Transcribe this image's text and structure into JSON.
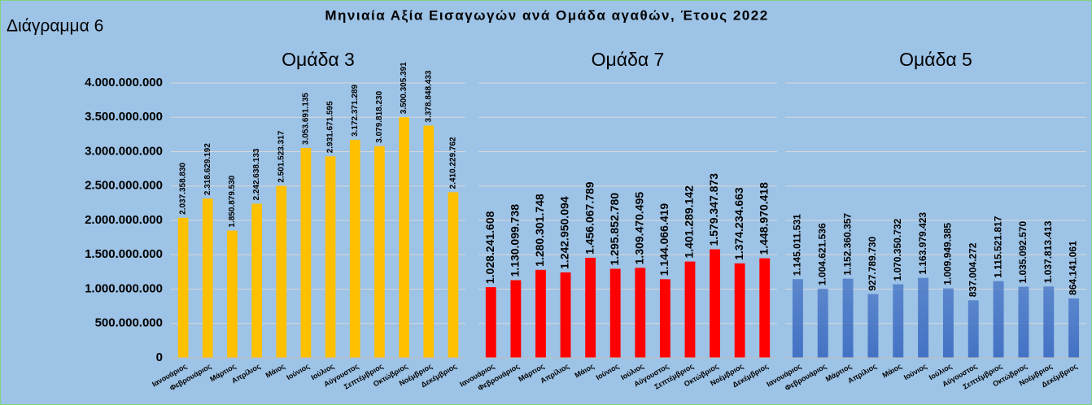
{
  "label": "Διάγραμμα 6",
  "title": "Μηνιαία Αξία Εισαγωγών ανά Ομάδα αγαθών, Έτους 2022",
  "chart_data": [
    {
      "type": "bar",
      "title": "Ομάδα 3",
      "color": "#ffc000",
      "categories": [
        "Ιανουάριος",
        "Φεβρουάριος",
        "Μάρτιος",
        "Απρίλιος",
        "Μάιος",
        "Ιούνιος",
        "Ιούλιος",
        "Αύγουστος",
        "Σεπτέμβριος",
        "Οκτώβριος",
        "Νοέμβριος",
        "Δεκέμβριος"
      ],
      "values": [
        2037358830,
        2318629192,
        1850879530,
        2242638133,
        2501523317,
        3053691135,
        2931671595,
        3172371289,
        3079818230,
        3500305391,
        3378848433,
        2410229762
      ],
      "value_labels": [
        "2.037.358.830",
        "2.318.629.192",
        "1.850.879.530",
        "2.242.638.133",
        "2.501.523.317",
        "3.053.691.135",
        "2.931.671.595",
        "3.172.371.289",
        "3.079.818.230",
        "3.500.305.391",
        "3.378.848.433",
        "2.410.229.762"
      ],
      "ylim": [
        0,
        4000000000
      ],
      "yticks": [
        0,
        {
          "value": 500000000,
          "label": "500.000.000"
        },
        {
          "value": 1000000000,
          "label": "1.000.000.000"
        },
        {
          "value": 1500000000,
          "label": "1.500.000.000"
        },
        {
          "value": 2000000000,
          "label": "2.000.000.000"
        },
        {
          "value": 2500000000,
          "label": "2.500.000.000"
        },
        {
          "value": 3000000000,
          "label": "3.000.000.000"
        },
        {
          "value": 3500000000,
          "label": "3.500.000.000"
        },
        {
          "value": 4000000000,
          "label": "4.000.000.000"
        }
      ]
    },
    {
      "type": "bar",
      "title": "Ομάδα 7",
      "color": "#ff0000",
      "categories": [
        "Ιανουάριος",
        "Φεβρουάριος",
        "Μάρτιος",
        "Απρίλιος",
        "Μάιος",
        "Ιούνιος",
        "Ιούλιος",
        "Αύγουστος",
        "Σεπτέμβριος",
        "Οκτώβριος",
        "Νοέμβριος",
        "Δεκέμβριος"
      ],
      "values": [
        1028241608,
        1130099738,
        1280301748,
        1242950094,
        1456067789,
        1295852780,
        1309470495,
        1144066419,
        1401289142,
        1579347873,
        1374234663,
        1448970418
      ],
      "value_labels": [
        "1.028.241.608",
        "1.130.099.738",
        "1.280.301.748",
        "1.242.950.094",
        "1.456.067.789",
        "1.295.852.780",
        "1.309.470.495",
        "1.144.066.419",
        "1.401.289.142",
        "1.579.347.873",
        "1.374.234.663",
        "1.448.970.418"
      ]
    },
    {
      "type": "bar",
      "title": "Ομάδα 5",
      "color": "#4472c4",
      "categories": [
        "Ιανουάριος",
        "Φεβρουάριος",
        "Μάρτιος",
        "Απρίλιος",
        "Μάιος",
        "Ιούνιος",
        "Ιούλιος",
        "Αύγουστος",
        "Σεπτέμβριος",
        "Οκτώβριος",
        "Νοέμβριος",
        "Δεκέμβριος"
      ],
      "values": [
        1145011531,
        1004621536,
        1152360357,
        927789730,
        1070350732,
        1163979423,
        1009949385,
        837004272,
        1115521817,
        1035092570,
        1037813413,
        864141061
      ],
      "value_labels": [
        "1.145.011.531",
        "1.004.621.536",
        "1.152.360.357",
        "927.789.730",
        "1.070.350.732",
        "1.163.979.423",
        "1.009.949.385",
        "837.004.272",
        "1.115.521.817",
        "1.035.092.570",
        "1.037.813.413",
        "864.141.061"
      ]
    }
  ]
}
